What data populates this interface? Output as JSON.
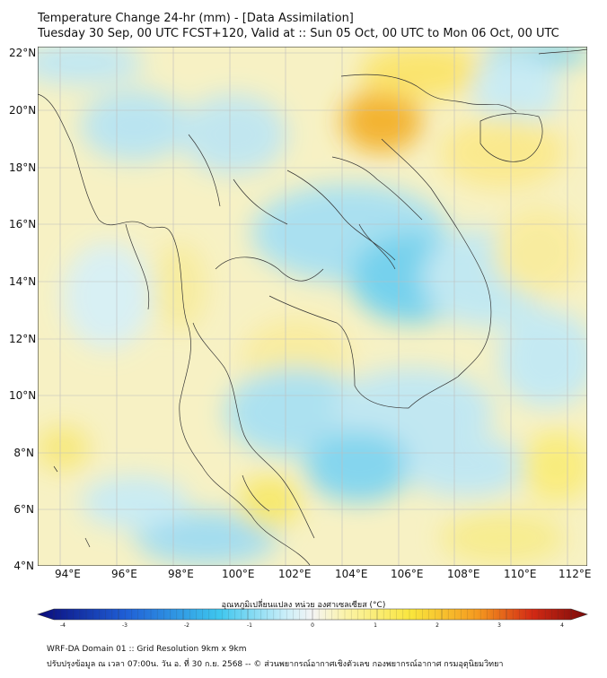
{
  "title": {
    "line1": "Temperature Change 24-hr (mm) - [Data Assimilation]",
    "line2": "Tuesday 30 Sep, 00 UTC FCST+120, Valid at :: Sun 05 Oct, 00 UTC to Mon 06 Oct, 00 UTC"
  },
  "axes": {
    "lat_labels": [
      "22°N",
      "20°N",
      "18°N",
      "16°N",
      "14°N",
      "12°N",
      "10°N",
      "8°N",
      "6°N",
      "4°N"
    ],
    "lon_labels": [
      "94°E",
      "96°E",
      "98°E",
      "100°E",
      "102°E",
      "104°E",
      "106°E",
      "108°E",
      "110°E",
      "112°E"
    ],
    "lat_range": [
      4,
      22.2
    ],
    "lon_range": [
      93,
      112.3
    ]
  },
  "colorbar": {
    "label": "อุณหภูมิเปลี่ยนแปลง หน่วย องศาเซลเซียส (°C)",
    "ticks": [
      "-4",
      "-3",
      "-2",
      "-1",
      "0",
      "1",
      "2",
      "3",
      "4"
    ],
    "range": [
      -4,
      4
    ],
    "colors": {
      "cold_deep": "#0a0a7a",
      "cold": "#1f5fd6",
      "cool": "#3ec6ee",
      "near_zero": "#f4f4f4",
      "warm": "#f9e53c",
      "warm_mid": "#f59a1f",
      "hot": "#d32a14",
      "hot_deep": "#7a0a0a"
    }
  },
  "footer": {
    "line1": "WRF-DA Domain 01 :: Grid Resolution 9km x 9km",
    "line2": "ปรับปรุงข้อมูล ณ เวลา 07:00น. วัน อ. ที่ 30 ก.ย. 2568 -- © ส่วนพยากรณ์อากาศเชิงตัวเลข กองพยากรณ์อากาศ กรมอุตุนิยมวิทยา"
  }
}
